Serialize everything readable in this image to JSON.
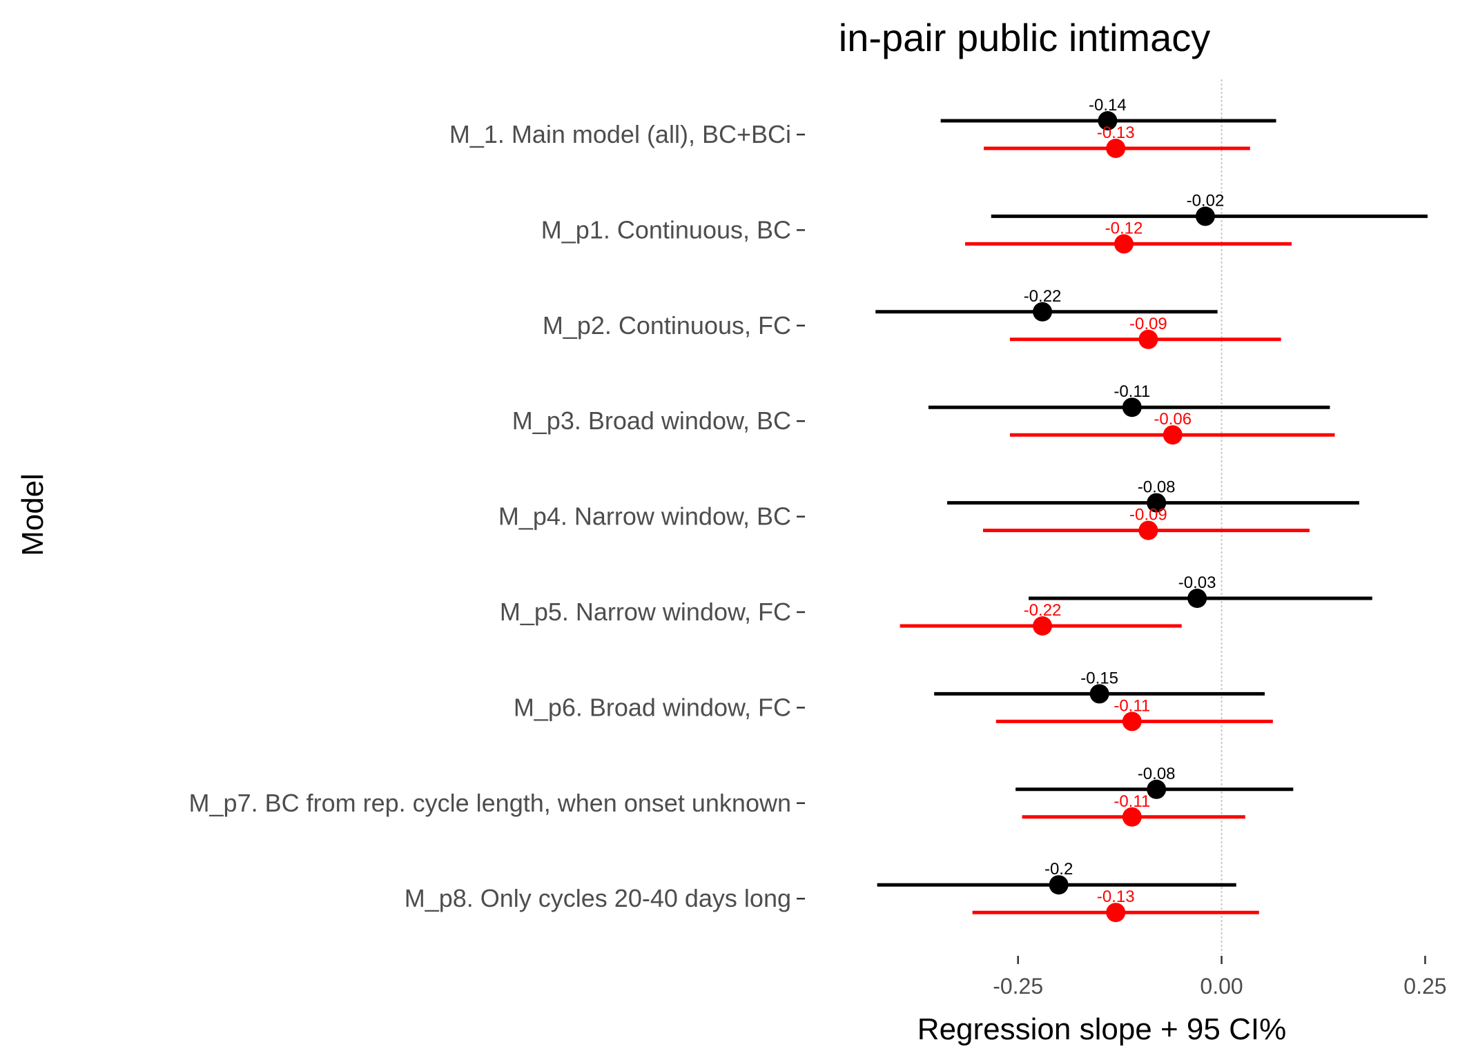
{
  "chart_data": {
    "type": "forest",
    "title": "in-pair public intimacy",
    "xlabel": "Regression slope + 95 CI%",
    "ylabel": "Model",
    "xlim": [
      -0.51,
      0.27
    ],
    "xticks": [
      -0.25,
      0.0,
      0.25
    ],
    "xtick_labels": [
      "-0.25",
      "0.00",
      "0.25"
    ],
    "reference_line": 0,
    "grid": false,
    "legend": "none",
    "categories": [
      "M_1. Main model (all), BC+BCi",
      "M_p1. Continuous, BC",
      "M_p2. Continuous, FC",
      "M_p3. Broad window, BC",
      "M_p4. Narrow window, BC",
      "M_p5. Narrow window, FC",
      "M_p6. Broad window, FC",
      "M_p7. BC from rep. cycle length, when onset unknown",
      "M_p8. Only cycles 20-40 days long"
    ],
    "series": [
      {
        "color": "#000000",
        "estimates": [
          -0.14,
          -0.02,
          -0.22,
          -0.11,
          -0.08,
          -0.03,
          -0.15,
          -0.08,
          -0.2
        ],
        "labels": [
          "-0.14",
          "-0.02",
          "-0.22",
          "-0.11",
          "-0.08",
          "-0.03",
          "-0.15",
          "-0.08",
          "-0.2"
        ],
        "lower": [
          -0.345,
          -0.283,
          -0.425,
          -0.36,
          -0.337,
          -0.237,
          -0.353,
          -0.253,
          -0.423
        ],
        "upper": [
          0.067,
          0.253,
          -0.005,
          0.133,
          0.169,
          0.185,
          0.053,
          0.088,
          0.018
        ]
      },
      {
        "color": "#ff0000",
        "estimates": [
          -0.13,
          -0.12,
          -0.09,
          -0.06,
          -0.09,
          -0.22,
          -0.11,
          -0.11,
          -0.13
        ],
        "labels": [
          "-0.13",
          "-0.12",
          "-0.09",
          "-0.06",
          "-0.09",
          "-0.22",
          "-0.11",
          "-0.11",
          "-0.13"
        ],
        "lower": [
          -0.292,
          -0.315,
          -0.26,
          -0.26,
          -0.293,
          -0.395,
          -0.277,
          -0.245,
          -0.306
        ],
        "upper": [
          0.035,
          0.086,
          0.073,
          0.139,
          0.108,
          -0.049,
          0.063,
          0.029,
          0.046
        ]
      }
    ]
  }
}
